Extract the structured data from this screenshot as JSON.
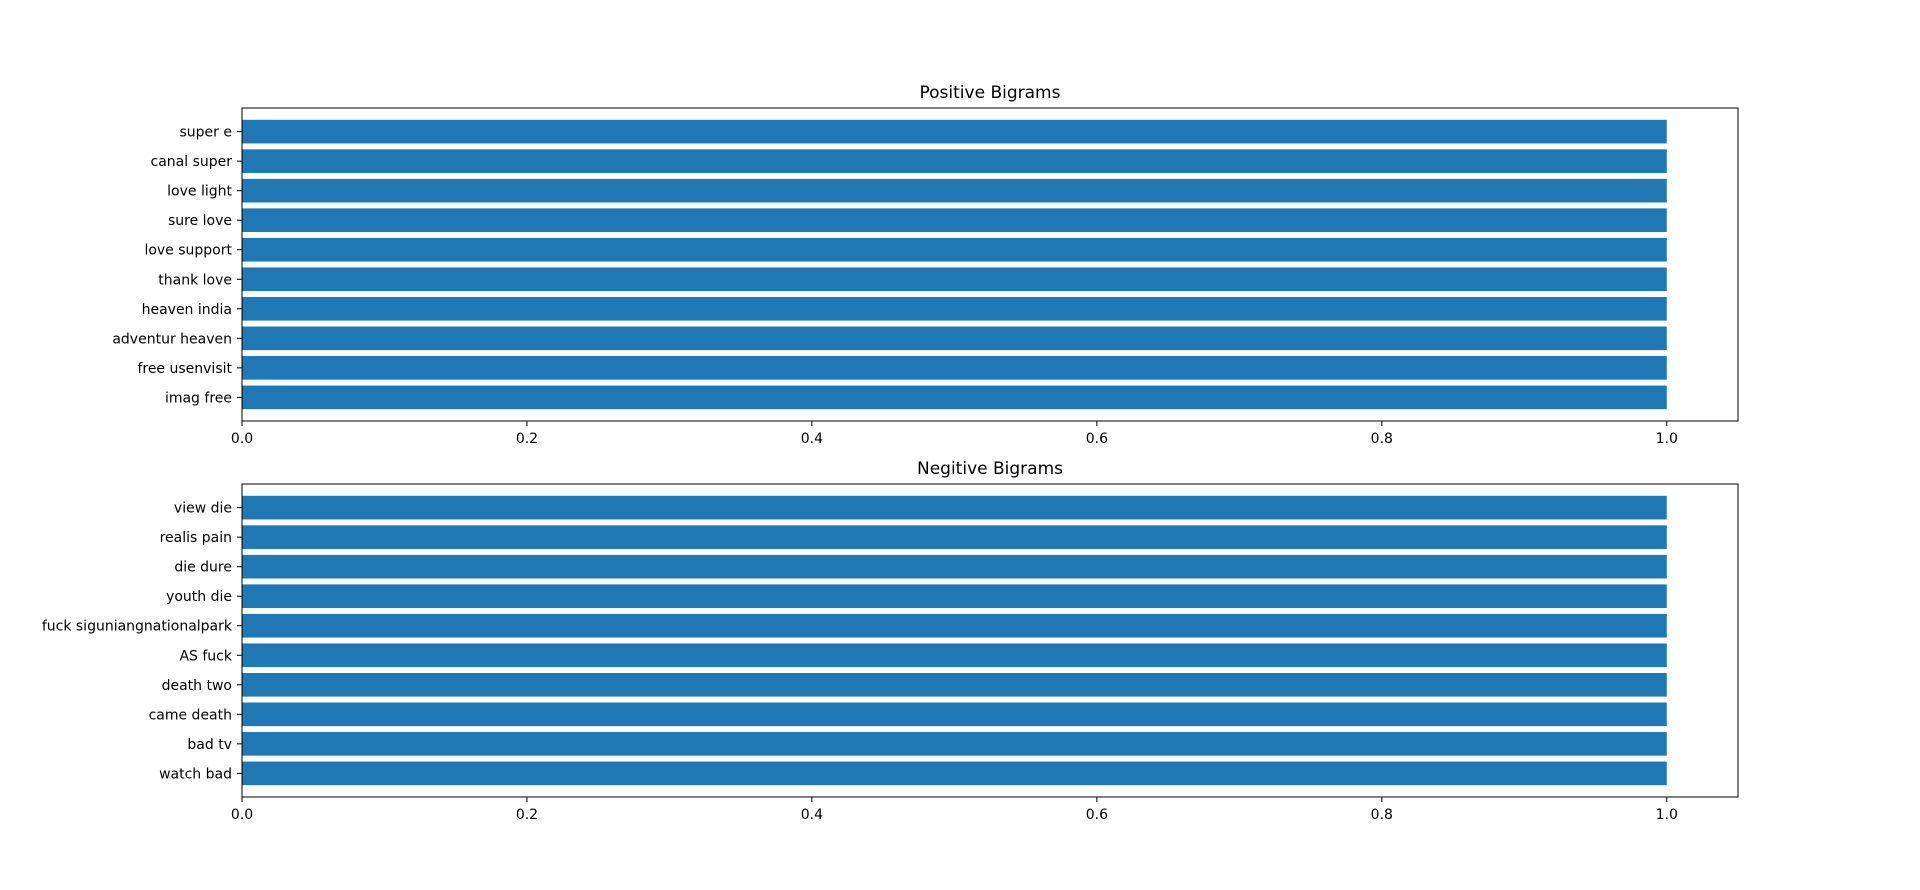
{
  "chart_data": [
    {
      "type": "bar",
      "orientation": "horizontal",
      "title": "Positive Bigrams",
      "categories": [
        "super e",
        "canal super",
        "love light",
        "sure love",
        "love support",
        "thank love",
        "heaven india",
        "adventur heaven",
        "free usenvisit",
        "imag free"
      ],
      "values": [
        1.0,
        1.0,
        1.0,
        1.0,
        1.0,
        1.0,
        1.0,
        1.0,
        1.0,
        1.0
      ],
      "xlim": [
        0,
        1.05
      ],
      "xticks": [
        0,
        0.2,
        0.4,
        0.6,
        0.8,
        1.0
      ],
      "xtick_labels": [
        "0.0",
        "0.2",
        "0.4",
        "0.6",
        "0.8",
        "1.0"
      ],
      "xlabel": "",
      "ylabel": "",
      "grid": false,
      "bar_color": "#1f77b4"
    },
    {
      "type": "bar",
      "orientation": "horizontal",
      "title": "Negitive Bigrams",
      "categories": [
        "view die",
        "realis pain",
        "die dure",
        "youth die",
        "fuck siguniangnationalpark",
        "AS fuck",
        "death two",
        "came death",
        "bad tv",
        "watch bad"
      ],
      "values": [
        1.0,
        1.0,
        1.0,
        1.0,
        1.0,
        1.0,
        1.0,
        1.0,
        1.0,
        1.0
      ],
      "xlim": [
        0,
        1.05
      ],
      "xticks": [
        0,
        0.2,
        0.4,
        0.6,
        0.8,
        1.0
      ],
      "xtick_labels": [
        "0.0",
        "0.2",
        "0.4",
        "0.6",
        "0.8",
        "1.0"
      ],
      "xlabel": "",
      "ylabel": "",
      "grid": false,
      "bar_color": "#1f77b4"
    }
  ]
}
